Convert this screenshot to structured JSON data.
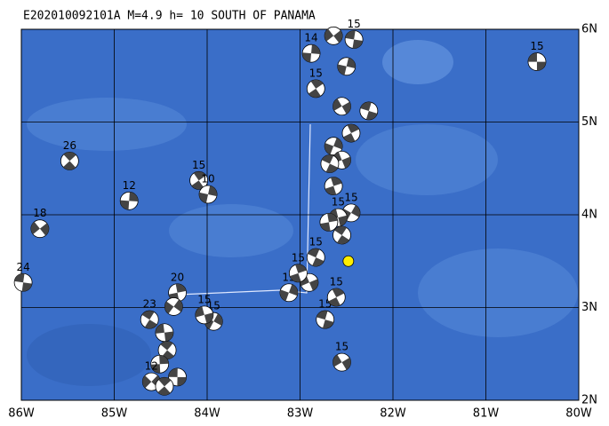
{
  "chart_data": {
    "type": "map",
    "title": "E202010092101A  M=4.9  h= 10  SOUTH OF PANAMA",
    "xlim": [
      -86,
      -80
    ],
    "ylim": [
      2,
      6
    ],
    "xticks": [
      {
        "value": -86,
        "label": "86W"
      },
      {
        "value": -85,
        "label": "85W"
      },
      {
        "value": -84,
        "label": "84W"
      },
      {
        "value": -83,
        "label": "83W"
      },
      {
        "value": -82,
        "label": "82W"
      },
      {
        "value": -81,
        "label": "81W"
      },
      {
        "value": -80,
        "label": "80W"
      }
    ],
    "yticks": [
      {
        "value": 2,
        "label": "2N"
      },
      {
        "value": 3,
        "label": "3N"
      },
      {
        "value": 4,
        "label": "4N"
      },
      {
        "value": 5,
        "label": "5N"
      },
      {
        "value": 6,
        "label": "6N"
      }
    ],
    "grid": true,
    "epicenter": {
      "lon": -82.48,
      "lat": 3.5,
      "color": "#ffee00"
    },
    "events": [
      {
        "lon": -80.45,
        "lat": 5.65,
        "depth": 15
      },
      {
        "lon": -85.48,
        "lat": 4.58,
        "depth": 26
      },
      {
        "lon": -84.84,
        "lat": 4.15,
        "depth": 12
      },
      {
        "lon": -85.8,
        "lat": 3.85,
        "depth": 18
      },
      {
        "lon": -85.98,
        "lat": 3.27,
        "depth": 24
      },
      {
        "lon": -84.09,
        "lat": 4.37,
        "depth": 15
      },
      {
        "lon": -83.99,
        "lat": 4.22,
        "depth": 10
      },
      {
        "lon": -82.55,
        "lat": 2.41,
        "depth": 15
      },
      {
        "lon": -82.73,
        "lat": 2.87,
        "depth": 15
      },
      {
        "lon": -82.61,
        "lat": 3.11,
        "depth": 15
      },
      {
        "lon": -83.12,
        "lat": 3.16,
        "depth": 15
      },
      {
        "lon": -82.9,
        "lat": 3.27,
        "depth": null
      },
      {
        "lon": -82.83,
        "lat": 3.54,
        "depth": 15
      },
      {
        "lon": -83.02,
        "lat": 3.37,
        "depth": 15
      },
      {
        "lon": -83.93,
        "lat": 2.85,
        "depth": 15
      },
      {
        "lon": -84.03,
        "lat": 2.92,
        "depth": 15
      },
      {
        "lon": -84.62,
        "lat": 2.87,
        "depth": 23
      },
      {
        "lon": -84.32,
        "lat": 3.16,
        "depth": 20
      },
      {
        "lon": -84.36,
        "lat": 3.01,
        "depth": null
      },
      {
        "lon": -84.46,
        "lat": 2.73,
        "depth": null
      },
      {
        "lon": -84.43,
        "lat": 2.54,
        "depth": null
      },
      {
        "lon": -84.51,
        "lat": 2.39,
        "depth": null
      },
      {
        "lon": -84.6,
        "lat": 2.2,
        "depth": 12
      },
      {
        "lon": -84.32,
        "lat": 2.25,
        "depth": null
      },
      {
        "lon": -84.46,
        "lat": 2.15,
        "depth": null
      },
      {
        "lon": -82.88,
        "lat": 5.74,
        "depth": 14
      },
      {
        "lon": -82.64,
        "lat": 5.93,
        "depth": null
      },
      {
        "lon": -82.42,
        "lat": 5.89,
        "depth": 15
      },
      {
        "lon": -82.83,
        "lat": 5.36,
        "depth": 15
      },
      {
        "lon": -82.5,
        "lat": 5.6,
        "depth": null
      },
      {
        "lon": -82.55,
        "lat": 5.17,
        "depth": null
      },
      {
        "lon": -82.26,
        "lat": 5.12,
        "depth": null
      },
      {
        "lon": -82.45,
        "lat": 4.88,
        "depth": null
      },
      {
        "lon": -82.64,
        "lat": 4.74,
        "depth": null
      },
      {
        "lon": -82.55,
        "lat": 4.59,
        "depth": null
      },
      {
        "lon": -82.68,
        "lat": 4.55,
        "depth": null
      },
      {
        "lon": -82.64,
        "lat": 4.31,
        "depth": null
      },
      {
        "lon": -82.45,
        "lat": 4.02,
        "depth": 15
      },
      {
        "lon": -82.59,
        "lat": 3.97,
        "depth": 15
      },
      {
        "lon": -82.55,
        "lat": 3.78,
        "depth": null
      },
      {
        "lon": -82.69,
        "lat": 3.92,
        "depth": null
      }
    ]
  }
}
